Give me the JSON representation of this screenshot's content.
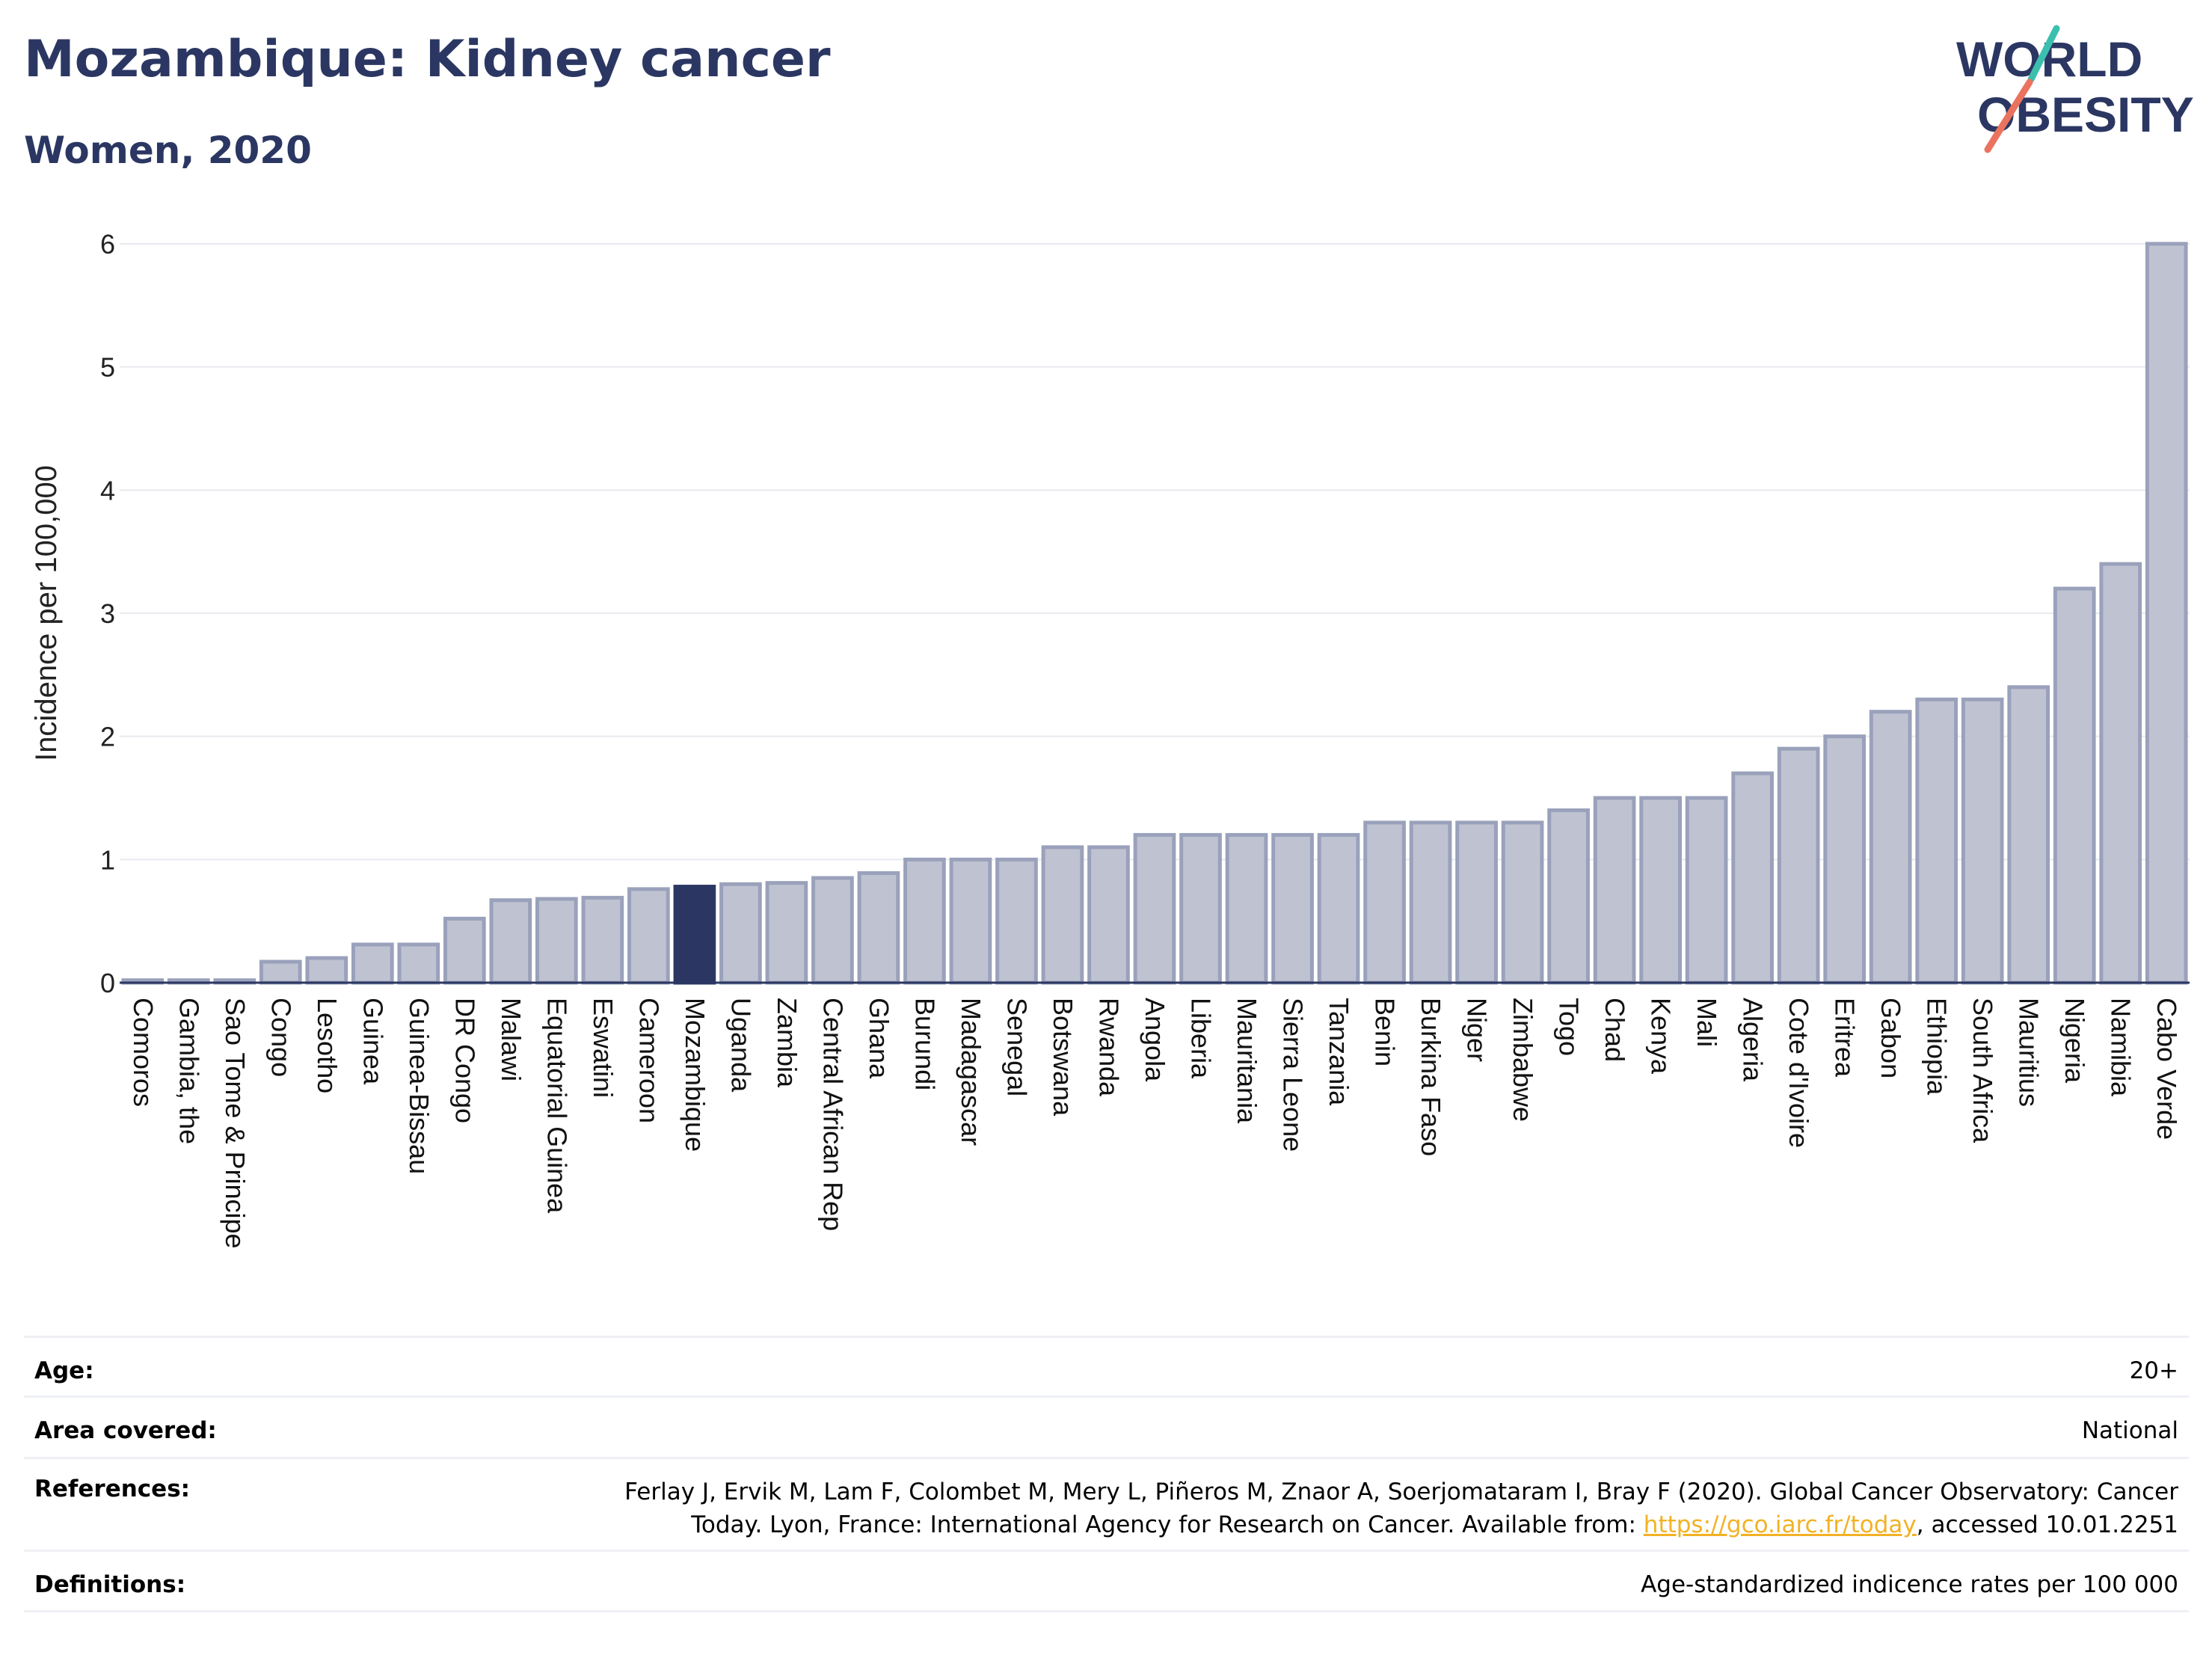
{
  "header": {
    "title": "Mozambique: Kidney cancer",
    "subtitle": "Women, 2020"
  },
  "logo": {
    "line1": "WORLD",
    "line2": "OBESITY"
  },
  "colors": {
    "title": "#2b3762",
    "bar": "#bfc3d1",
    "bar_stroke": "#9aa1bb",
    "highlight": "#2b3762",
    "grid": "#e8eaef",
    "link": "#f2b225",
    "logo_teal": "#3cbfae",
    "logo_coral": "#e9735f"
  },
  "chart_data": {
    "type": "bar",
    "title": "Mozambique: Kidney cancer",
    "subtitle": "Women, 2020",
    "xlabel": "",
    "ylabel": "Incidence per 100,000",
    "ylim": [
      0,
      6
    ],
    "yticks": [
      0,
      1,
      2,
      3,
      4,
      5,
      6
    ],
    "grid": true,
    "highlight": "Mozambique",
    "categories": [
      "Comoros",
      "Gambia, the",
      "Sao Tome & Principe",
      "Congo",
      "Lesotho",
      "Guinea",
      "Guinea-Bissau",
      "DR Congo",
      "Malawi",
      "Equatorial Guinea",
      "Eswatini",
      "Cameroon",
      "Mozambique",
      "Uganda",
      "Zambia",
      "Central African Rep",
      "Ghana",
      "Burundi",
      "Madagascar",
      "Senegal",
      "Botswana",
      "Rwanda",
      "Angola",
      "Liberia",
      "Mauritania",
      "Sierra Leone",
      "Tanzania",
      "Benin",
      "Burkina Faso",
      "Niger",
      "Zimbabwe",
      "Togo",
      "Chad",
      "Kenya",
      "Mali",
      "Algeria",
      "Cote d'Ivoire",
      "Eritrea",
      "Gabon",
      "Ethiopia",
      "South Africa",
      "Mauritius",
      "Nigeria",
      "Namibia",
      "Cabo Verde"
    ],
    "values": [
      0.02,
      0.02,
      0.02,
      0.17,
      0.2,
      0.31,
      0.31,
      0.52,
      0.67,
      0.68,
      0.69,
      0.76,
      0.78,
      0.8,
      0.81,
      0.85,
      0.89,
      1.0,
      1.0,
      1.0,
      1.1,
      1.1,
      1.2,
      1.2,
      1.2,
      1.2,
      1.2,
      1.3,
      1.3,
      1.3,
      1.3,
      1.4,
      1.5,
      1.5,
      1.5,
      1.7,
      1.9,
      2.0,
      2.2,
      2.3,
      2.3,
      2.4,
      3.2,
      3.4,
      6.0
    ]
  },
  "info": {
    "age_label": "Age:",
    "age_value": "20+",
    "area_label": "Area covered:",
    "area_value": "National",
    "references_label": "References:",
    "references_text_1": "Ferlay J, Ervik M, Lam F, Colombet M, Mery L, Piñeros M, Znaor A, Soerjomataram I, Bray F (2020). Global Cancer Observatory: Cancer Today. Lyon, France: International Agency for Research on Cancer. Available from: ",
    "references_link": "https://gco.iarc.fr/today",
    "references_text_2": ", accessed 10.01.2251",
    "definitions_label": "Definitions:",
    "definitions_value": "Age-standardized indicence rates per 100 000"
  }
}
